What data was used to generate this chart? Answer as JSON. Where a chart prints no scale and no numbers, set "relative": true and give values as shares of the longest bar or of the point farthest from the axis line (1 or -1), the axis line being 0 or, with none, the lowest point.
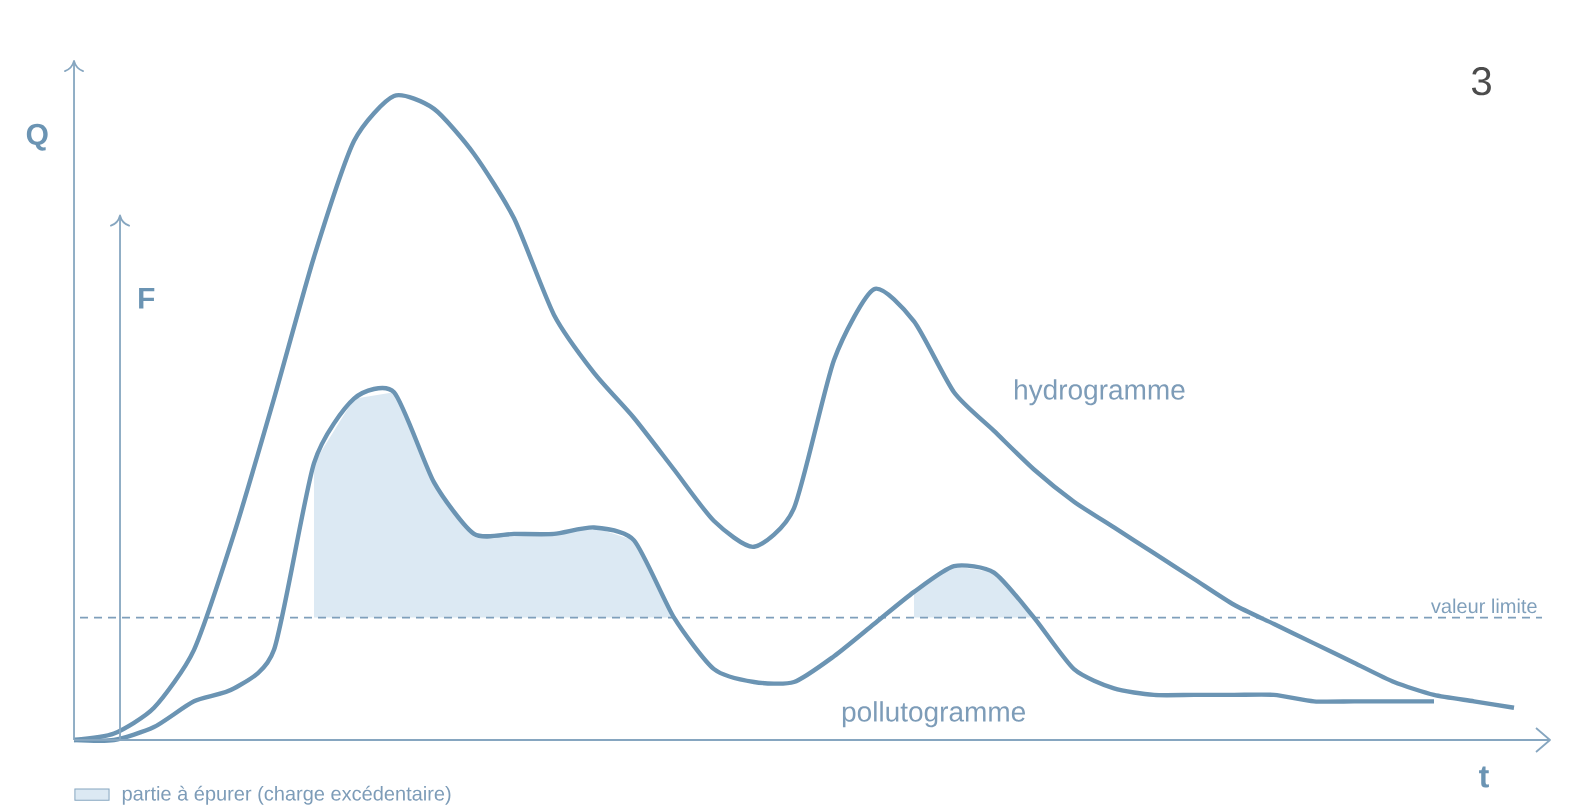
{
  "chart_data": {
    "type": "line",
    "relative": true,
    "xlabel": "t",
    "ylabel": "Q",
    "y2label": "F",
    "legend": "bottom left",
    "categories": [
      null,
      null,
      null,
      null,
      null,
      null,
      null,
      null,
      null,
      null,
      null,
      null,
      null,
      null,
      null,
      null,
      null,
      null,
      null,
      null,
      null,
      null,
      null,
      null,
      null,
      null,
      null,
      null,
      null,
      null,
      null,
      null,
      null,
      null,
      null,
      null,
      null
    ],
    "series": [
      {
        "name": "hydrogramme",
        "color": "#6b94b3",
        "values": [
          0,
          0.01,
          0.05,
          0.14,
          0.32,
          0.53,
          0.75,
          0.93,
          1.0,
          0.98,
          0.91,
          0.81,
          0.66,
          0.57,
          0.5,
          0.42,
          0.34,
          0.3,
          0.36,
          0.59,
          0.7,
          0.65,
          0.54,
          0.48,
          0.42,
          0.37,
          0.33,
          0.29,
          0.25,
          0.21,
          0.18,
          0.15,
          0.12,
          0.09,
          0.07,
          0.06,
          0.05
        ]
      },
      {
        "name": "pollutogramme",
        "color": "#6b94b3",
        "values": [
          0,
          0,
          0.02,
          0.06,
          0.08,
          0.14,
          0.43,
          0.53,
          0.54,
          0.4,
          0.32,
          0.32,
          0.32,
          0.33,
          0.31,
          0.19,
          0.11,
          0.09,
          0.09,
          0.13,
          0.18,
          0.23,
          0.27,
          0.26,
          0.19,
          0.11,
          0.08,
          0.07,
          0.07,
          0.07,
          0.07,
          0.06,
          0.06,
          0.06,
          0.06,
          null,
          null
        ]
      },
      {
        "name": "partie à épurer (charge excédentaire)",
        "type": "area",
        "color": "#dce9f3",
        "values": [
          null,
          null,
          null,
          null,
          null,
          null,
          0.43,
          0.53,
          0.54,
          0.4,
          0.32,
          0.32,
          0.32,
          0.33,
          0.31,
          0.19,
          null,
          null,
          null,
          null,
          null,
          0.23,
          0.27,
          0.26,
          0.19,
          null,
          null,
          null,
          null,
          null,
          null,
          null,
          null,
          null,
          null,
          null,
          null
        ]
      }
    ],
    "ref_lines": [
      {
        "axis": "y",
        "value": 0.19,
        "label": "valeur limite",
        "color": "#7f9fbb",
        "line_style": "dashed"
      }
    ],
    "annotations": [
      "3"
    ]
  }
}
